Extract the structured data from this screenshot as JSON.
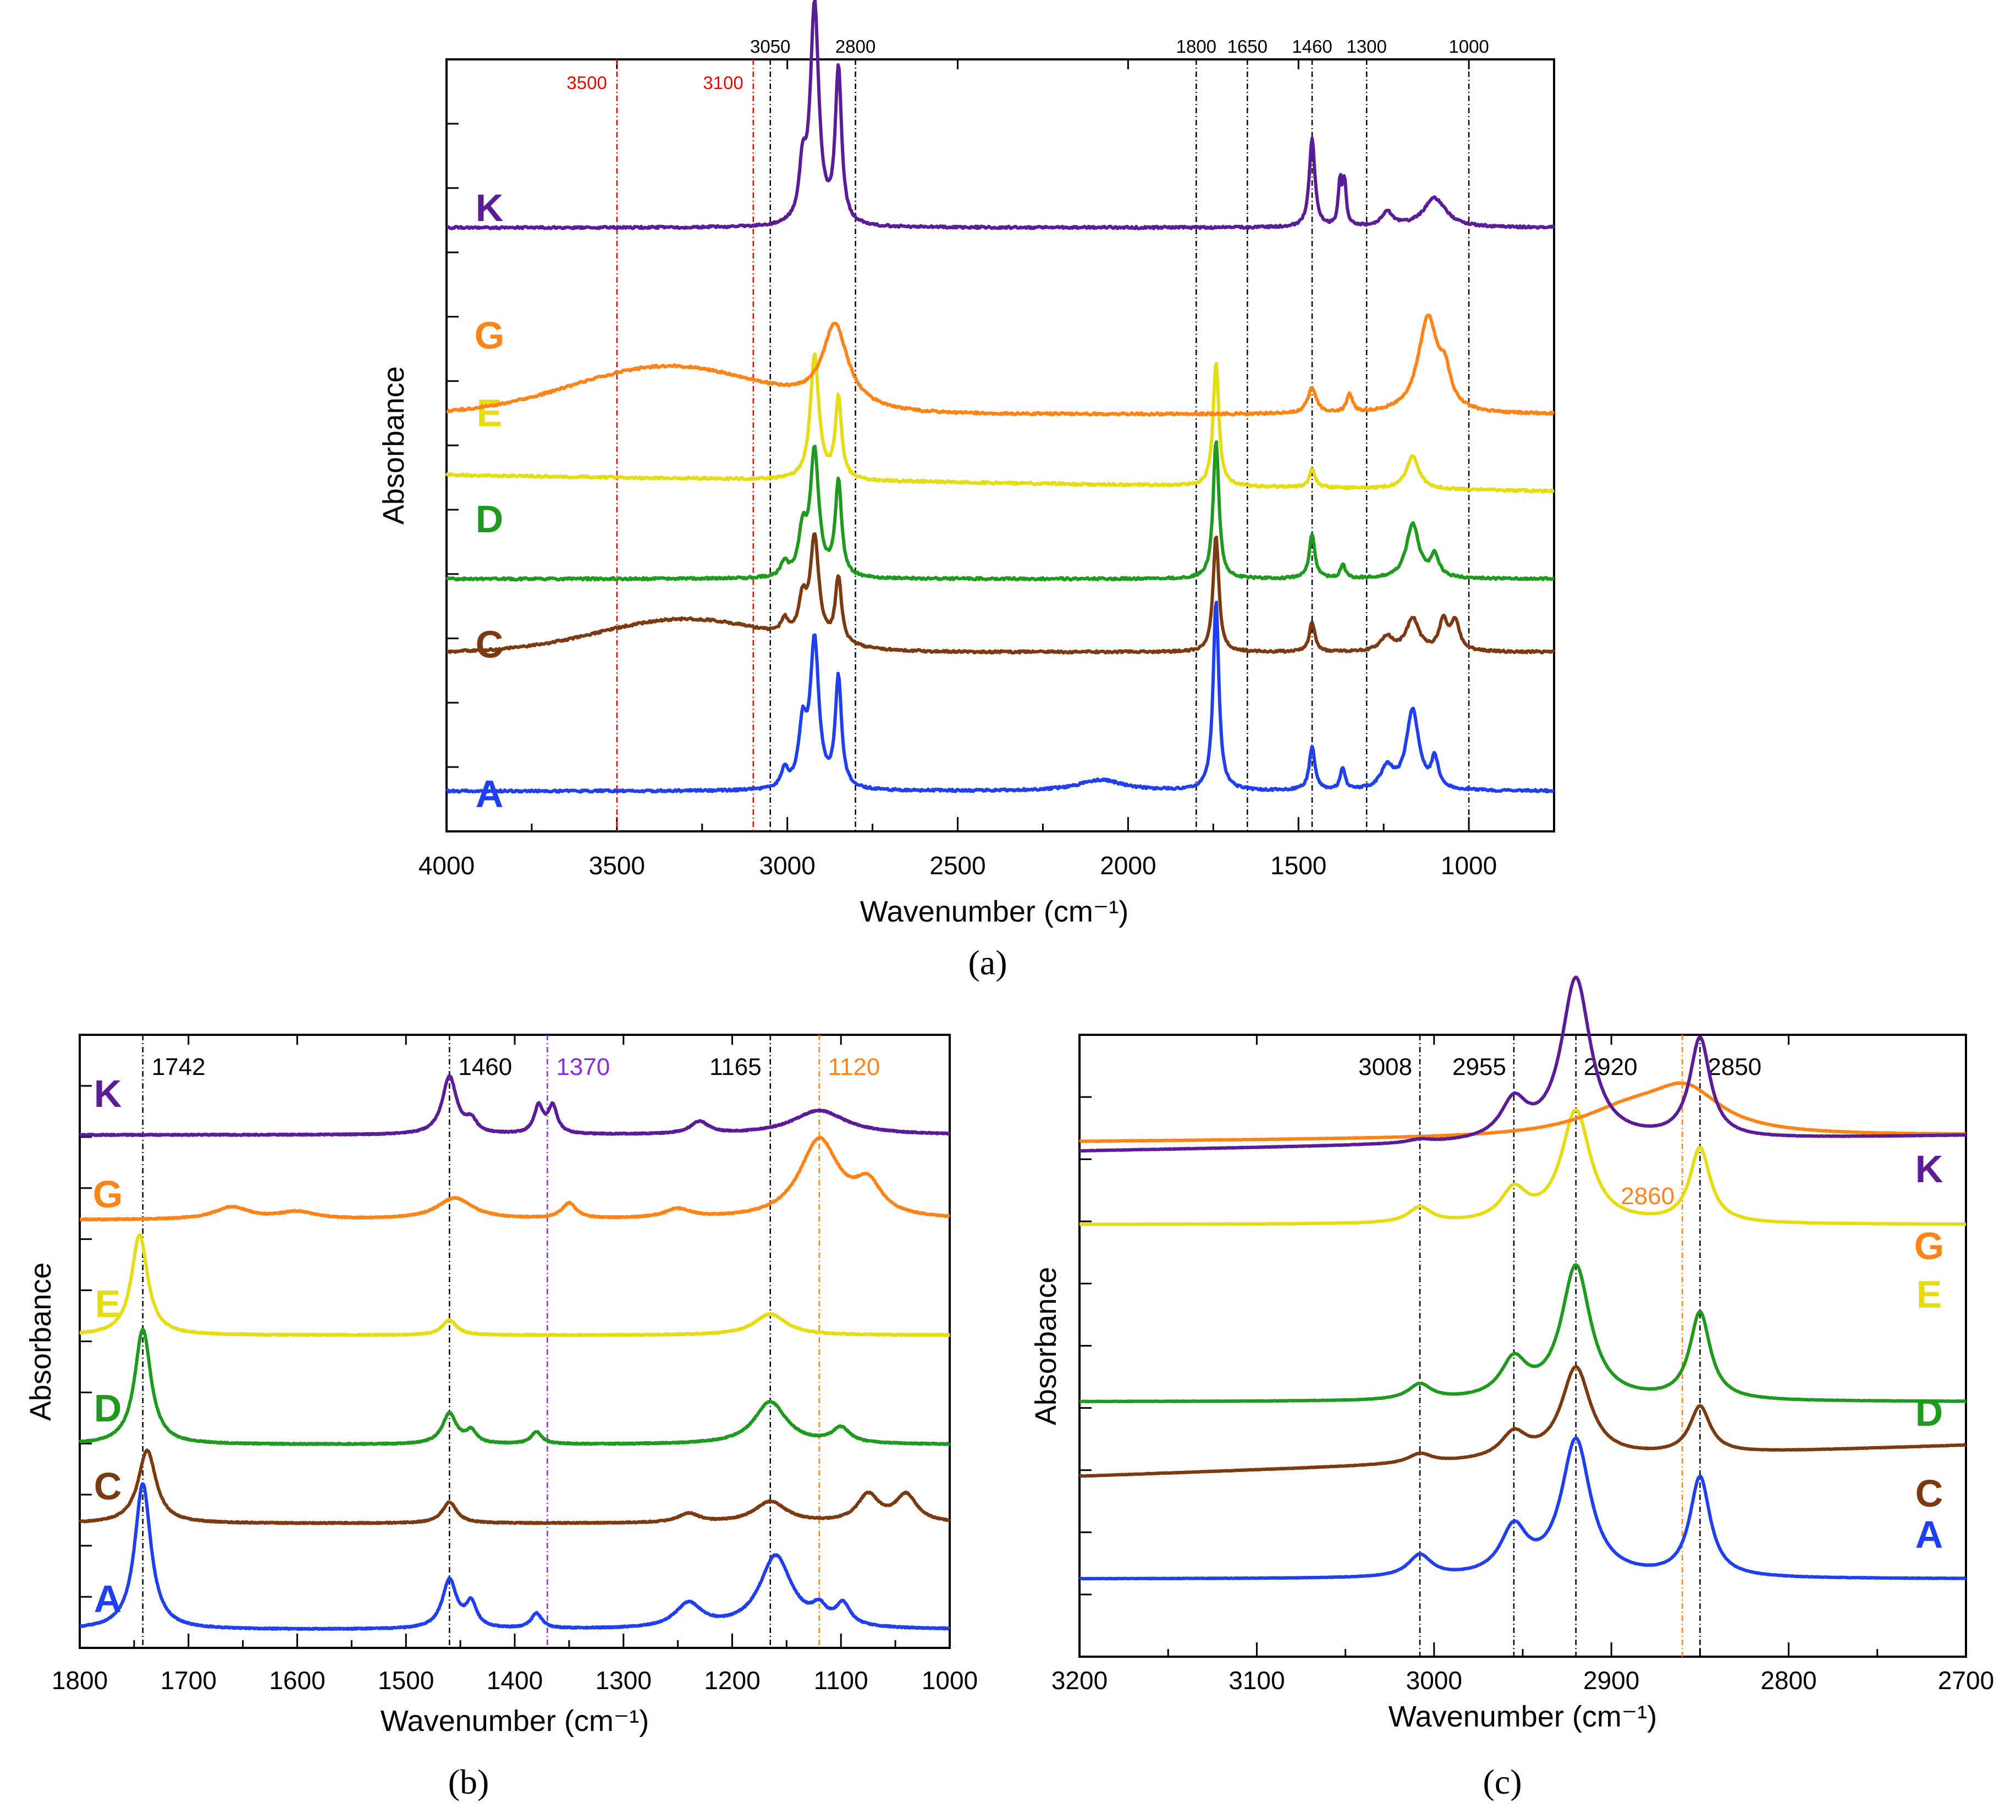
{
  "figure_labels": {
    "a": "(a)",
    "b": "(b)",
    "c": "(c)"
  },
  "chart_data": [
    {
      "id": "a",
      "type": "line",
      "title": "",
      "xlabel": "Wavenumber (cm⁻¹)",
      "ylabel": "Absorbance",
      "xlim": [
        4000,
        750
      ],
      "ylim": [
        -0.55,
        10.0
      ],
      "x_ticks": [
        4000,
        3500,
        3000,
        2500,
        2000,
        1500,
        1000
      ],
      "x_tick_labels": [
        "4000",
        "3500",
        "3000",
        "2500",
        "2000",
        "1500",
        "1000"
      ],
      "ref_lines": [
        {
          "x": 3500,
          "label": "3500",
          "color": "#ff0000",
          "style": "dash-dot"
        },
        {
          "x": 3100,
          "label": "3100",
          "color": "#ff0000",
          "style": "dash-dot"
        },
        {
          "x": 3050,
          "label": "3050",
          "color": "#000000",
          "style": "dash-dot"
        },
        {
          "x": 2800,
          "label": "2800",
          "color": "#000000",
          "style": "dash-dot"
        },
        {
          "x": 1800,
          "label": "1800",
          "color": "#000000",
          "style": "dash-dot"
        },
        {
          "x": 1650,
          "label": "1650",
          "color": "#000000",
          "style": "dash-dot"
        },
        {
          "x": 1460,
          "label": "1460",
          "color": "#000000",
          "style": "dash-dot"
        },
        {
          "x": 1300,
          "label": "1300",
          "color": "#000000",
          "style": "dash-dot"
        },
        {
          "x": 1000,
          "label": "1000",
          "color": "#000000",
          "style": "dash-dot"
        }
      ],
      "series": [
        {
          "name": "A",
          "color": "#1f3ff0",
          "baseline": 0.0,
          "slope": 0.0,
          "peaks": [
            [
              3008,
              0.25,
              12
            ],
            [
              2955,
              0.8,
              14
            ],
            [
              2920,
              2.0,
              15
            ],
            [
              2850,
              1.5,
              11
            ],
            [
              1742,
              2.6,
              10
            ],
            [
              1460,
              0.6,
              10
            ],
            [
              1370,
              0.3,
              8
            ],
            [
              1240,
              0.3,
              22
            ],
            [
              1165,
              1.1,
              22
            ],
            [
              1100,
              0.4,
              12
            ],
            [
              2080,
              0.15,
              80
            ]
          ],
          "broad": []
        },
        {
          "name": "C",
          "color": "#7b3a10",
          "baseline": 1.9,
          "slope": 0.0,
          "peaks": [
            [
              3008,
              0.2,
              12
            ],
            [
              2955,
              0.5,
              14
            ],
            [
              2920,
              1.4,
              15
            ],
            [
              2850,
              0.9,
              11
            ],
            [
              1742,
              1.6,
              10
            ],
            [
              1460,
              0.4,
              10
            ],
            [
              1240,
              0.2,
              22
            ],
            [
              1165,
              0.45,
              22
            ],
            [
              1075,
              0.4,
              15
            ],
            [
              1040,
              0.4,
              15
            ]
          ],
          "broad": [
            [
              3300,
              0.45,
              250
            ]
          ]
        },
        {
          "name": "D",
          "color": "#1f9a1f",
          "baseline": 2.9,
          "slope": 0.0,
          "peaks": [
            [
              3008,
              0.2,
              12
            ],
            [
              2955,
              0.6,
              14
            ],
            [
              2920,
              1.7,
              15
            ],
            [
              2850,
              1.3,
              11
            ],
            [
              1742,
              1.9,
              10
            ],
            [
              1460,
              0.6,
              10
            ],
            [
              1370,
              0.2,
              8
            ],
            [
              1165,
              0.75,
              22
            ],
            [
              1100,
              0.3,
              15
            ]
          ],
          "broad": []
        },
        {
          "name": "E",
          "color": "#e6dc14",
          "baseline": 4.1,
          "slope": 0.22,
          "peaks": [
            [
              2920,
              1.7,
              15
            ],
            [
              2850,
              1.1,
              11
            ],
            [
              1742,
              1.7,
              10
            ],
            [
              1460,
              0.25,
              10
            ],
            [
              1165,
              0.45,
              22
            ]
          ],
          "broad": []
        },
        {
          "name": "G",
          "color": "#ff8418",
          "baseline": 5.15,
          "slope": 0.0,
          "peaks": [
            [
              2860,
              1.1,
              45
            ],
            [
              1460,
              0.35,
              15
            ],
            [
              1350,
              0.25,
              10
            ],
            [
              1120,
              1.3,
              35
            ],
            [
              1070,
              0.4,
              20
            ]
          ],
          "broad": [
            [
              3350,
              0.65,
              280
            ]
          ]
        },
        {
          "name": "K",
          "color": "#5b1c98",
          "baseline": 7.7,
          "slope": 0.0,
          "peaks": [
            [
              2955,
              0.7,
              12
            ],
            [
              2920,
              3.0,
              15
            ],
            [
              2850,
              2.1,
              11
            ],
            [
              1460,
              1.2,
              10
            ],
            [
              1378,
              0.6,
              6
            ],
            [
              1365,
              0.6,
              6
            ],
            [
              1240,
              0.2,
              20
            ],
            [
              1100,
              0.4,
              40
            ]
          ],
          "broad": []
        }
      ]
    },
    {
      "id": "b",
      "type": "line",
      "title": "",
      "xlabel": "Wavenumber (cm⁻¹)",
      "ylabel": "Absorbance",
      "xlim": [
        1800,
        1000
      ],
      "ylim": [
        -0.1,
        10.0
      ],
      "x_ticks": [
        1800,
        1700,
        1600,
        1500,
        1400,
        1300,
        1200,
        1100,
        1000
      ],
      "x_tick_labels": [
        "1800",
        "1700",
        "1600",
        "1500",
        "1400",
        "1300",
        "1200",
        "1100",
        "1000"
      ],
      "ref_lines": [
        {
          "x": 1742,
          "label": "1742",
          "color": "#000000",
          "style": "dash-dot"
        },
        {
          "x": 1460,
          "label": "1460",
          "color": "#000000",
          "style": "dash-dot"
        },
        {
          "x": 1370,
          "label": "1370",
          "color": "#8a2be2",
          "style": "dash-dot"
        },
        {
          "x": 1165,
          "label": "1165",
          "color": "#000000",
          "style": "dash-dot"
        },
        {
          "x": 1120,
          "label": "1120",
          "color": "#ff8418",
          "style": "dash-dot"
        }
      ],
      "series": [
        {
          "name": "A",
          "color": "#1f3ff0",
          "baseline": 0.2,
          "slope": 0.0,
          "peaks": [
            [
              1742,
              2.4,
              9
            ],
            [
              1460,
              0.8,
              8
            ],
            [
              1440,
              0.4,
              6
            ],
            [
              1380,
              0.25,
              6
            ],
            [
              1240,
              0.4,
              15
            ],
            [
              1160,
              1.2,
              18
            ],
            [
              1120,
              0.25,
              8
            ],
            [
              1098,
              0.35,
              8
            ]
          ],
          "broad": []
        },
        {
          "name": "C",
          "color": "#7b3a10",
          "baseline": 1.95,
          "slope": 0.0,
          "peaks": [
            [
              1738,
              1.2,
              10
            ],
            [
              1460,
              0.35,
              8
            ],
            [
              1240,
              0.15,
              12
            ],
            [
              1165,
              0.35,
              18
            ],
            [
              1075,
              0.45,
              12
            ],
            [
              1040,
              0.45,
              12
            ]
          ],
          "broad": []
        },
        {
          "name": "D",
          "color": "#1f9a1f",
          "baseline": 3.25,
          "slope": 0.0,
          "peaks": [
            [
              1742,
              1.9,
              9
            ],
            [
              1460,
              0.5,
              8
            ],
            [
              1440,
              0.2,
              6
            ],
            [
              1380,
              0.2,
              6
            ],
            [
              1165,
              0.7,
              18
            ],
            [
              1100,
              0.25,
              10
            ]
          ],
          "broad": []
        },
        {
          "name": "E",
          "color": "#e6dc14",
          "baseline": 5.05,
          "slope": 0.0,
          "peaks": [
            [
              1745,
              1.65,
              9
            ],
            [
              1460,
              0.25,
              8
            ],
            [
              1165,
              0.35,
              18
            ]
          ],
          "broad": []
        },
        {
          "name": "G",
          "color": "#ff8418",
          "baseline": 6.95,
          "slope": 0.0,
          "peaks": [
            [
              1660,
              0.2,
              20
            ],
            [
              1600,
              0.12,
              20
            ],
            [
              1455,
              0.35,
              20
            ],
            [
              1350,
              0.25,
              8
            ],
            [
              1250,
              0.15,
              15
            ],
            [
              1120,
              1.3,
              22
            ],
            [
              1075,
              0.5,
              15
            ]
          ],
          "broad": []
        },
        {
          "name": "K",
          "color": "#5b1c98",
          "baseline": 8.35,
          "slope": 0.0,
          "peaks": [
            [
              1460,
              0.95,
              8
            ],
            [
              1440,
              0.2,
              6
            ],
            [
              1378,
              0.45,
              5
            ],
            [
              1365,
              0.45,
              5
            ],
            [
              1230,
              0.2,
              10
            ],
            [
              1120,
              0.4,
              30
            ]
          ],
          "broad": []
        }
      ]
    },
    {
      "id": "c",
      "type": "line",
      "title": "",
      "xlabel": "Wavenumber (cm⁻¹)",
      "ylabel": "Absorbance",
      "xlim": [
        3200,
        2700
      ],
      "ylim": [
        -0.2,
        9.8
      ],
      "x_ticks": [
        3200,
        3100,
        3000,
        2900,
        2800,
        2700
      ],
      "x_tick_labels": [
        "3200",
        "3100",
        "3000",
        "2900",
        "2800",
        "2700"
      ],
      "ref_lines": [
        {
          "x": 3008,
          "label": "3008",
          "color": "#000000",
          "style": "dash-dot",
          "pos": "top"
        },
        {
          "x": 2955,
          "label": "2955",
          "color": "#000000",
          "style": "dash-dot",
          "pos": "top"
        },
        {
          "x": 2920,
          "label": "2920",
          "color": "#000000",
          "style": "dash-dot",
          "pos": "top"
        },
        {
          "x": 2850,
          "label": "2850",
          "color": "#000000",
          "style": "dash-dot",
          "pos": "top"
        },
        {
          "x": 2860,
          "label": "2860",
          "color": "#ff8418",
          "style": "dash-dot",
          "pos": "mid"
        }
      ],
      "series": [
        {
          "name": "A",
          "color": "#1f3ff0",
          "baseline": 1.05,
          "slope": 0.0,
          "peaks": [
            [
              3008,
              0.35,
              8
            ],
            [
              2955,
              0.75,
              9
            ],
            [
              2920,
              2.2,
              10
            ],
            [
              2850,
              1.6,
              7
            ]
          ],
          "broad": []
        },
        {
          "name": "C",
          "color": "#7b3a10",
          "baseline": 3.2,
          "slope": -0.5,
          "peaks": [
            [
              3008,
              0.15,
              8
            ],
            [
              2955,
              0.4,
              9
            ],
            [
              2920,
              1.45,
              10
            ],
            [
              2850,
              0.75,
              7
            ]
          ],
          "broad": []
        },
        {
          "name": "D",
          "color": "#1f9a1f",
          "baseline": 3.9,
          "slope": 0.0,
          "peaks": [
            [
              3008,
              0.25,
              8
            ],
            [
              2955,
              0.6,
              9
            ],
            [
              2920,
              2.15,
              10
            ],
            [
              2850,
              1.4,
              7
            ]
          ],
          "broad": []
        },
        {
          "name": "E",
          "color": "#e6dc14",
          "baseline": 6.75,
          "slope": 0.0,
          "peaks": [
            [
              3008,
              0.25,
              8
            ],
            [
              2955,
              0.5,
              9
            ],
            [
              2920,
              1.8,
              10
            ],
            [
              2850,
              1.2,
              7
            ]
          ],
          "broad": []
        },
        {
          "name": "G",
          "color": "#ff8418",
          "baseline": 8.18,
          "slope": -0.1,
          "peaks": [
            [
              2890,
              0.4,
              35
            ],
            [
              2858,
              0.65,
              24
            ]
          ],
          "broad": []
        },
        {
          "name": "K",
          "color": "#5b1c98",
          "baseline": 8.18,
          "slope": -0.25,
          "peaks": [
            [
              3008,
              0.05,
              8
            ],
            [
              2955,
              0.6,
              9
            ],
            [
              2920,
              2.6,
              10
            ],
            [
              2850,
              1.6,
              7
            ]
          ],
          "broad": []
        }
      ]
    }
  ]
}
